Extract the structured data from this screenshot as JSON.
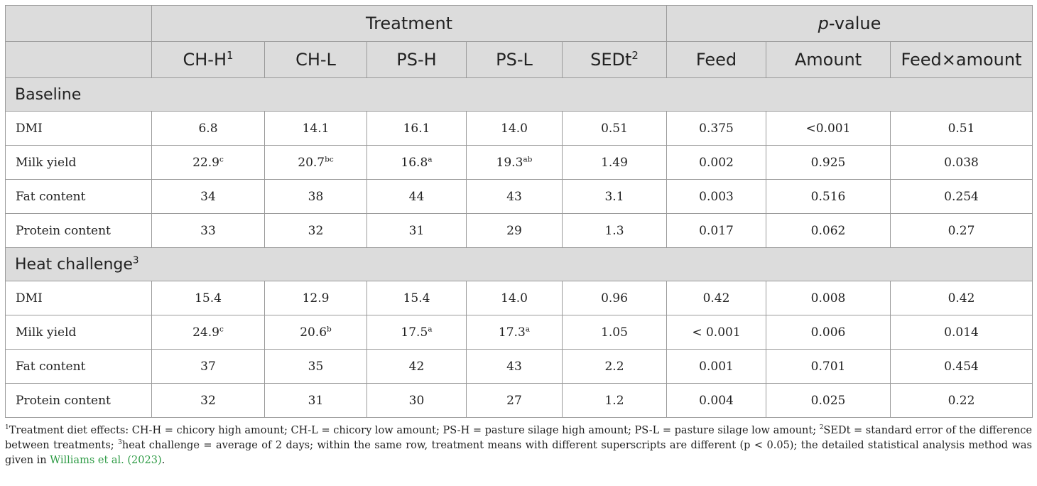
{
  "header": {
    "group_treatment": "Treatment",
    "group_pvalue_prefix": "p",
    "group_pvalue_suffix": "-value",
    "columns": [
      {
        "label": "CH-H",
        "sup": "1"
      },
      {
        "label": "CH-L",
        "sup": ""
      },
      {
        "label": "PS-H",
        "sup": ""
      },
      {
        "label": "PS-L",
        "sup": ""
      },
      {
        "label": "SEDt",
        "sup": "2"
      },
      {
        "label": "Feed",
        "sup": ""
      },
      {
        "label": "Amount",
        "sup": ""
      },
      {
        "label": "Feed×amount",
        "sup": ""
      }
    ]
  },
  "sections": [
    {
      "title": "Baseline",
      "title_sup": "",
      "rows": [
        {
          "label": "DMI",
          "cells": [
            [
              "6.8",
              ""
            ],
            [
              "14.1",
              ""
            ],
            [
              "16.1",
              ""
            ],
            [
              "14.0",
              ""
            ],
            [
              "0.51",
              ""
            ],
            [
              "0.375",
              ""
            ],
            [
              "<0.001",
              ""
            ],
            [
              "0.51",
              ""
            ]
          ]
        },
        {
          "label": "Milk yield",
          "cells": [
            [
              "22.9",
              "c"
            ],
            [
              "20.7",
              "bc"
            ],
            [
              "16.8",
              "a"
            ],
            [
              "19.3",
              "ab"
            ],
            [
              "1.49",
              ""
            ],
            [
              "0.002",
              ""
            ],
            [
              "0.925",
              ""
            ],
            [
              "0.038",
              ""
            ]
          ]
        },
        {
          "label": "Fat content",
          "cells": [
            [
              "34",
              ""
            ],
            [
              "38",
              ""
            ],
            [
              "44",
              ""
            ],
            [
              "43",
              ""
            ],
            [
              "3.1",
              ""
            ],
            [
              "0.003",
              ""
            ],
            [
              "0.516",
              ""
            ],
            [
              "0.254",
              ""
            ]
          ]
        },
        {
          "label": "Protein content",
          "cells": [
            [
              "33",
              ""
            ],
            [
              "32",
              ""
            ],
            [
              "31",
              ""
            ],
            [
              "29",
              ""
            ],
            [
              "1.3",
              ""
            ],
            [
              "0.017",
              ""
            ],
            [
              "0.062",
              ""
            ],
            [
              "0.27",
              ""
            ]
          ]
        }
      ]
    },
    {
      "title": "Heat challenge",
      "title_sup": "3",
      "rows": [
        {
          "label": "DMI",
          "cells": [
            [
              "15.4",
              ""
            ],
            [
              "12.9",
              ""
            ],
            [
              "15.4",
              ""
            ],
            [
              "14.0",
              ""
            ],
            [
              "0.96",
              ""
            ],
            [
              "0.42",
              ""
            ],
            [
              "0.008",
              ""
            ],
            [
              "0.42",
              ""
            ]
          ]
        },
        {
          "label": "Milk yield",
          "cells": [
            [
              "24.9",
              "c"
            ],
            [
              "20.6",
              "b"
            ],
            [
              "17.5",
              "a"
            ],
            [
              "17.3",
              "a"
            ],
            [
              "1.05",
              ""
            ],
            [
              "< 0.001",
              ""
            ],
            [
              "0.006",
              ""
            ],
            [
              "0.014",
              ""
            ]
          ]
        },
        {
          "label": "Fat content",
          "cells": [
            [
              "37",
              ""
            ],
            [
              "35",
              ""
            ],
            [
              "42",
              ""
            ],
            [
              "43",
              ""
            ],
            [
              "2.2",
              ""
            ],
            [
              "0.001",
              ""
            ],
            [
              "0.701",
              ""
            ],
            [
              "0.454",
              ""
            ]
          ]
        },
        {
          "label": "Protein content",
          "cells": [
            [
              "32",
              ""
            ],
            [
              "31",
              ""
            ],
            [
              "30",
              ""
            ],
            [
              "27",
              ""
            ],
            [
              "1.2",
              ""
            ],
            [
              "0.004",
              ""
            ],
            [
              "0.025",
              ""
            ],
            [
              "0.22",
              ""
            ]
          ]
        }
      ]
    }
  ],
  "footnote": {
    "s1_sup": "1",
    "s1": "Treatment diet effects: CH-H = chicory high amount; CH-L = chicory low amount; PS-H = pasture silage high amount; PS-L = pasture silage low amount; ",
    "s2_sup": "2",
    "s2": "SEDt = standard error of the difference between treatments; ",
    "s3_sup": "3",
    "s3": "heat challenge = average of 2 days; within the same row, treatment means with different superscripts are different (p < 0.05); the detailed statistical analysis method was given in ",
    "link": "Williams et al. (2023)",
    "end": "."
  },
  "colors": {
    "header_bg": "#dcdcdc",
    "border": "#9a9a9a",
    "link": "#2e9b45"
  }
}
